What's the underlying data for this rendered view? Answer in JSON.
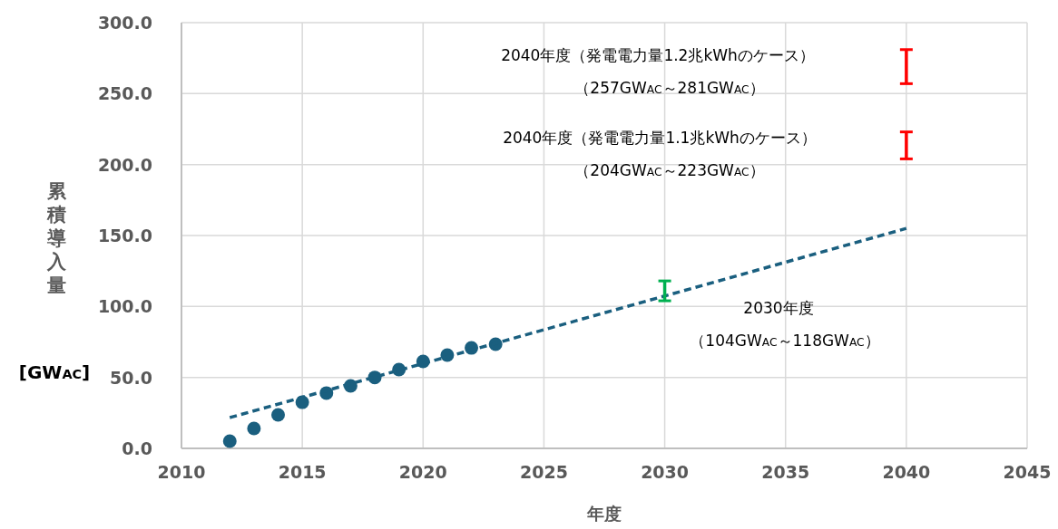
{
  "chart_data": {
    "type": "scatter",
    "xlabel": "年度",
    "ylabel": "累積導入量",
    "xlim": [
      2010,
      2045
    ],
    "xticks": [
      2010,
      2015,
      2020,
      2025,
      2030,
      2035,
      2040,
      2045
    ],
    "ylim": [
      0,
      300
    ],
    "yticks": [
      {
        "value": 0,
        "label": "0.0"
      },
      {
        "value": 50,
        "label": "50.0"
      },
      {
        "value": 100,
        "label": "100.0"
      },
      {
        "value": 150,
        "label": "150.0"
      },
      {
        "value": 200,
        "label": "200.0"
      },
      {
        "value": 250,
        "label": "250.0"
      },
      {
        "value": 300,
        "label": "300.0"
      }
    ],
    "grid": true,
    "marker": "circle",
    "series": [
      {
        "color": "#1a5f7f",
        "x": [
          2012,
          2013,
          2014,
          2015,
          2016,
          2017,
          2018,
          2019,
          2020,
          2021,
          2022,
          2023
        ],
        "values": [
          5.1,
          14,
          23.6,
          32.5,
          39,
          44,
          50,
          55.5,
          61.3,
          65.7,
          70.8,
          73.4
        ]
      },
      {
        "type": "line",
        "color": "#1a5f7f",
        "line_style": "dashed",
        "marker": "none",
        "x": [
          2012,
          2040
        ],
        "values": [
          21.7,
          155
        ]
      },
      {
        "type": "bar",
        "color": "#00b050",
        "x": [
          2030
        ],
        "base": [
          104
        ],
        "values": [
          14
        ]
      },
      {
        "type": "bar",
        "color": "#ff0000",
        "x": [
          2040
        ],
        "base": [
          204
        ],
        "values": [
          19
        ]
      },
      {
        "type": "bar",
        "color": "#ff0000",
        "x": [
          2040
        ],
        "base": [
          257
        ],
        "values": [
          24
        ]
      }
    ],
    "annotations": [
      "[GW$_{AC}$]",
      "2040年度（発電電力量1.2兆kWhのケース）",
      "（257GW$_{AC}$～281GW$_{AC}$）",
      "2040年度（発電電力量1.1兆kWhのケース）",
      "（204GW$_{AC}$～223GW$_{AC}$）",
      "2030年度",
      "（104GW$_{AC}$～118GW$_{AC}$）"
    ]
  }
}
